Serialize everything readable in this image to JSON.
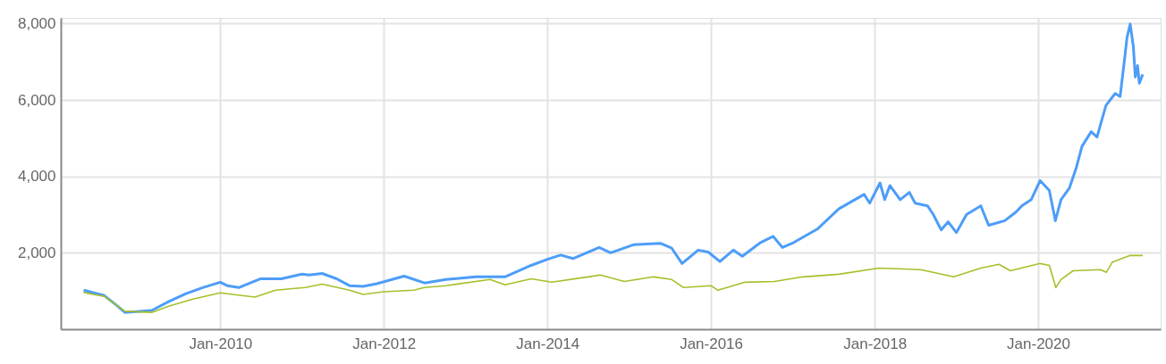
{
  "chart_data": {
    "type": "line",
    "xlim": [
      "2008-01-20",
      "2021-07-01"
    ],
    "xticks": [
      {
        "value": "2010-01-01",
        "label": "Jan-2010"
      },
      {
        "value": "2012-01-01",
        "label": "Jan-2012"
      },
      {
        "value": "2014-01-01",
        "label": "Jan-2014"
      },
      {
        "value": "2016-01-01",
        "label": "Jan-2016"
      },
      {
        "value": "2018-01-01",
        "label": "Jan-2018"
      },
      {
        "value": "2020-01-01",
        "label": "Jan-2020"
      }
    ],
    "ylim": [
      0,
      8150
    ],
    "yticks": [
      {
        "value": 2000,
        "label": "2,000"
      },
      {
        "value": 4000,
        "label": "4,000"
      },
      {
        "value": 6000,
        "label": "6,000"
      },
      {
        "value": 8000,
        "label": "8,000"
      }
    ],
    "grid": true,
    "line_style": "solid",
    "marker": "none",
    "series": [
      {
        "color": "#4d9df8",
        "x": [
          "2008-05-01",
          "2008-08-01",
          "2008-10-01",
          "2008-11-01",
          "2009-03-01",
          "2009-05-15",
          "2009-08-01",
          "2009-10-15",
          "2010-01-01",
          "2010-02-01",
          "2010-03-25",
          "2010-06-01",
          "2010-07-01",
          "2010-10-01",
          "2011-01-01",
          "2011-02-01",
          "2011-04-01",
          "2011-06-05",
          "2011-08-01",
          "2011-10-01",
          "2011-12-01",
          "2012-04-01",
          "2012-07-01",
          "2012-10-05",
          "2013-02-15",
          "2013-06-25",
          "2013-10-20",
          "2014-01-01",
          "2014-03-01",
          "2014-04-25",
          "2014-08-20",
          "2014-10-10",
          "2015-01-20",
          "2015-05-20",
          "2015-07-10",
          "2015-08-25",
          "2015-11-05",
          "2015-12-20",
          "2016-02-10",
          "2016-04-10",
          "2016-05-20",
          "2016-08-10",
          "2016-10-05",
          "2016-11-15",
          "2017-01-05",
          "2017-04-20",
          "2017-07-25",
          "2017-11-15",
          "2017-12-10",
          "2018-01-25",
          "2018-02-15",
          "2018-03-10",
          "2018-04-25",
          "2018-06-05",
          "2018-07-01",
          "2018-08-25",
          "2018-09-20",
          "2018-10-25",
          "2018-11-25",
          "2019-01-01",
          "2019-02-15",
          "2019-04-20",
          "2019-05-25",
          "2019-08-05",
          "2019-09-25",
          "2019-10-20",
          "2019-12-01",
          "2020-01-10",
          "2020-02-20",
          "2020-03-18",
          "2020-04-12",
          "2020-05-20",
          "2020-06-20",
          "2020-07-15",
          "2020-08-25",
          "2020-09-20",
          "2020-10-12",
          "2020-10-30",
          "2020-12-10",
          "2021-01-01",
          "2021-01-20",
          "2021-02-01",
          "2021-02-15",
          "2021-03-01",
          "2021-03-10",
          "2021-03-20",
          "2021-03-28",
          "2021-04-12"
        ],
        "values": [
          1020,
          880,
          600,
          440,
          490,
          720,
          930,
          1090,
          1230,
          1140,
          1090,
          1250,
          1320,
          1320,
          1440,
          1420,
          1460,
          1320,
          1140,
          1120,
          1190,
          1390,
          1210,
          1300,
          1370,
          1370,
          1670,
          1830,
          1940,
          1850,
          2140,
          2000,
          2210,
          2250,
          2120,
          1720,
          2070,
          2020,
          1770,
          2070,
          1910,
          2270,
          2430,
          2140,
          2270,
          2620,
          3150,
          3530,
          3300,
          3830,
          3390,
          3760,
          3390,
          3580,
          3300,
          3230,
          3000,
          2600,
          2810,
          2530,
          3000,
          3230,
          2720,
          2840,
          3070,
          3230,
          3390,
          3890,
          3630,
          2840,
          3390,
          3700,
          4240,
          4790,
          5170,
          5030,
          5490,
          5860,
          6170,
          6090,
          7020,
          7640,
          7990,
          7410,
          6600,
          6900,
          6440,
          6670
        ]
      },
      {
        "color": "#a5c02a",
        "x": [
          "2008-05-01",
          "2008-08-01",
          "2008-11-01",
          "2009-03-01",
          "2009-05-15",
          "2009-09-01",
          "2010-01-01",
          "2010-06-05",
          "2010-09-05",
          "2011-01-15",
          "2011-04-01",
          "2011-08-01",
          "2011-10-01",
          "2012-01-01",
          "2012-05-15",
          "2012-07-01",
          "2012-10-05",
          "2013-04-20",
          "2013-06-25",
          "2013-10-20",
          "2014-01-20",
          "2014-07-01",
          "2014-08-25",
          "2014-12-10",
          "2015-04-20",
          "2015-07-10",
          "2015-09-01",
          "2016-01-01",
          "2016-02-01",
          "2016-06-01",
          "2016-10-10",
          "2017-02-15",
          "2017-07-25",
          "2018-01-20",
          "2018-07-25",
          "2018-12-20",
          "2019-04-20",
          "2019-07-10",
          "2019-08-30",
          "2020-01-10",
          "2020-02-20",
          "2020-03-20",
          "2020-04-12",
          "2020-06-05",
          "2020-10-05",
          "2020-11-01",
          "2020-11-28",
          "2021-02-15",
          "2021-04-12"
        ],
        "values": [
          960,
          860,
          470,
          440,
          600,
          790,
          950,
          840,
          1020,
          1090,
          1180,
          1020,
          910,
          980,
          1020,
          1090,
          1140,
          1300,
          1160,
          1320,
          1230,
          1370,
          1420,
          1250,
          1370,
          1300,
          1090,
          1140,
          1020,
          1230,
          1250,
          1370,
          1440,
          1600,
          1560,
          1370,
          1600,
          1700,
          1530,
          1720,
          1670,
          1090,
          1300,
          1530,
          1560,
          1490,
          1760,
          1930,
          1930
        ]
      }
    ]
  }
}
